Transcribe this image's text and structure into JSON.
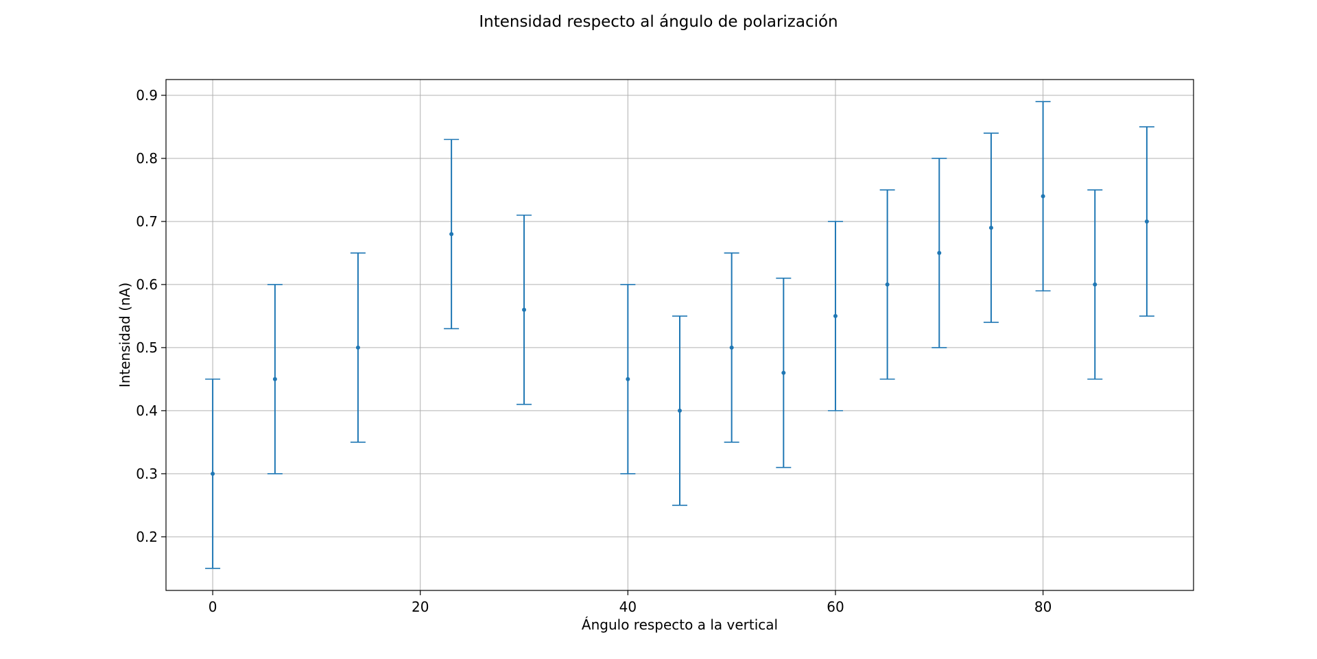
{
  "chart_data": {
    "type": "scatter",
    "subtype": "errorbar",
    "title": "Intensidad respecto al ángulo de polarización",
    "xlabel": "Ángulo respecto a la vertical",
    "ylabel": "Intensidad (nA)",
    "xlim": [
      -4.5,
      94.5
    ],
    "ylim": [
      0.115,
      0.925
    ],
    "xticks": [
      0,
      20,
      40,
      60,
      80
    ],
    "yticks": [
      0.2,
      0.3,
      0.4,
      0.5,
      0.6,
      0.7,
      0.8,
      0.9
    ],
    "xtick_labels": [
      "0",
      "20",
      "40",
      "60",
      "80"
    ],
    "ytick_labels": [
      "0.2",
      "0.3",
      "0.4",
      "0.5",
      "0.6",
      "0.7",
      "0.8",
      "0.9"
    ],
    "grid": true,
    "color": "#1f77b4",
    "series": [
      {
        "x": [
          0,
          6,
          14,
          23,
          30,
          40,
          45,
          50,
          55,
          60,
          65,
          70,
          75,
          80,
          85,
          90
        ],
        "y": [
          0.3,
          0.45,
          0.5,
          0.68,
          0.56,
          0.45,
          0.4,
          0.5,
          0.46,
          0.55,
          0.6,
          0.65,
          0.69,
          0.74,
          0.6,
          0.7
        ],
        "yerr": [
          0.15,
          0.15,
          0.15,
          0.15,
          0.15,
          0.15,
          0.15,
          0.15,
          0.15,
          0.15,
          0.15,
          0.15,
          0.15,
          0.15,
          0.15,
          0.15
        ]
      }
    ]
  }
}
